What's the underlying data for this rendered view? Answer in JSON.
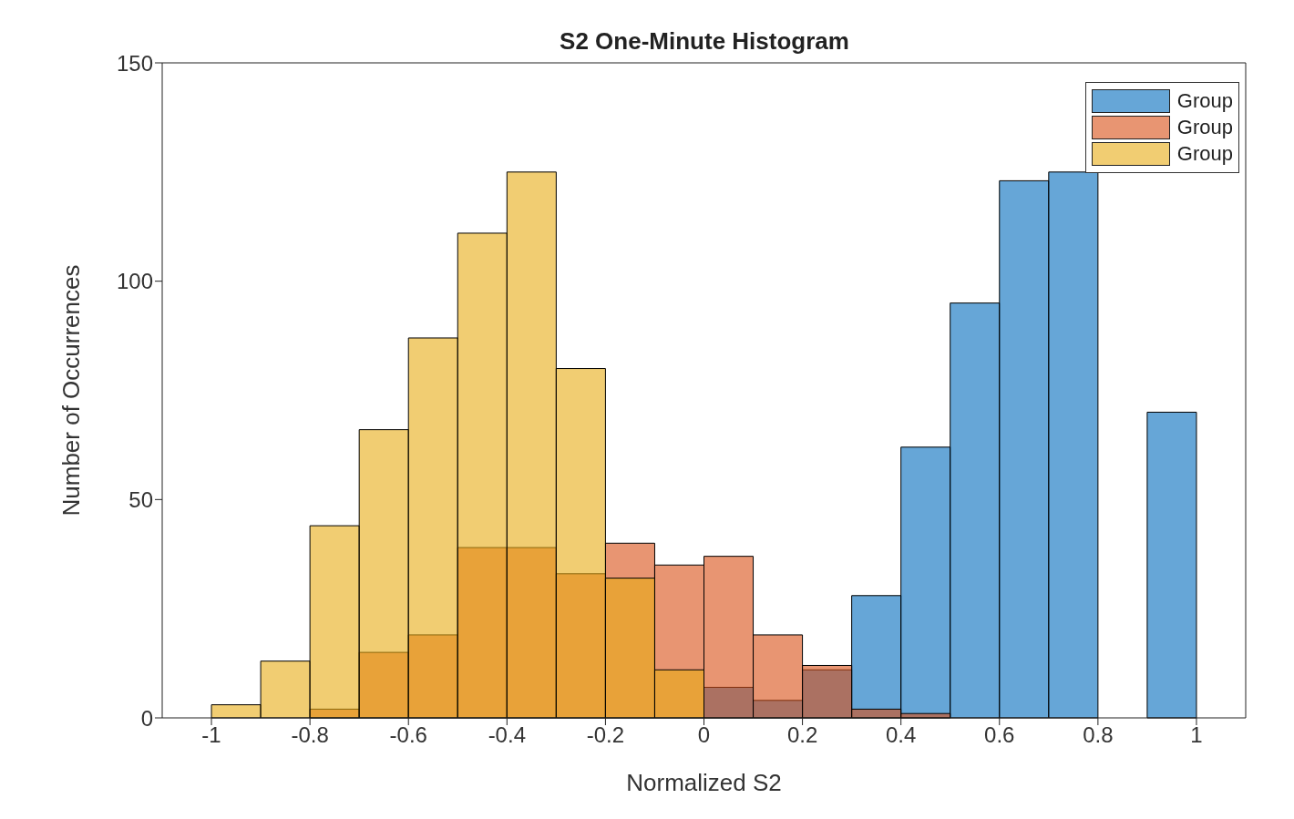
{
  "chart_data": {
    "type": "histogram",
    "title": "S2 One-Minute Histogram",
    "xlabel": "Normalized S2",
    "ylabel": "Number of Occurrences",
    "bins": [
      -1,
      -0.9,
      -0.8,
      -0.7,
      -0.6,
      -0.5,
      -0.4,
      -0.3,
      -0.2,
      -0.1,
      0,
      0.1,
      0.2,
      0.3,
      0.4,
      0.5,
      0.6,
      0.7,
      0.8,
      0.9,
      1
    ],
    "series": [
      {
        "name": "Group",
        "color": "#66a6d7",
        "values": [
          0,
          0,
          0,
          0,
          0,
          0,
          0,
          0,
          0,
          0,
          7,
          4,
          11,
          28,
          62,
          95,
          123,
          125,
          null,
          70
        ]
      },
      {
        "name": "Group",
        "color": "#e89572",
        "values": [
          0,
          0,
          2,
          15,
          19,
          39,
          39,
          33,
          40,
          35,
          37,
          19,
          12,
          2,
          1,
          0,
          0,
          0,
          0,
          0
        ]
      },
      {
        "name": "Group",
        "color": "#f1cd72",
        "values": [
          3,
          13,
          44,
          66,
          87,
          111,
          125,
          80,
          32,
          11,
          0,
          0,
          0,
          0,
          0,
          0,
          0,
          0,
          0,
          0
        ]
      }
    ],
    "xlim": [
      -1.1,
      1.1
    ],
    "xticks": [
      -1,
      -0.8,
      -0.6,
      -0.4,
      -0.2,
      0,
      0.2,
      0.4,
      0.6,
      0.8,
      1
    ],
    "ylim": [
      0,
      150
    ],
    "yticks": [
      0,
      50,
      100,
      150
    ],
    "grid": false,
    "legend": "top right"
  }
}
